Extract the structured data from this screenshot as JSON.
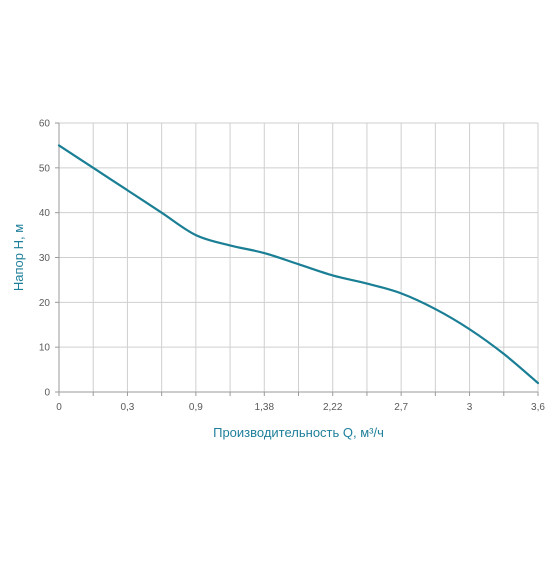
{
  "chart_data": {
    "type": "line",
    "title": "",
    "xlabel": "Производительность Q, м³/ч",
    "ylabel": "Напор H, м",
    "x_tick_labels": [
      "0",
      "0,3",
      "0,9",
      "1,38",
      "2,22",
      "2,7",
      "3",
      "3,6"
    ],
    "y_ticks": [
      0,
      10,
      20,
      30,
      40,
      50,
      60
    ],
    "y_tick_labels": [
      "0",
      "10",
      "20",
      "30",
      "40",
      "50",
      "60"
    ],
    "ylim": [
      0,
      60
    ],
    "vertical_grid_count": 14,
    "grid": true,
    "legend": "none",
    "series": [
      {
        "color": "#1a7f95",
        "points": [
          {
            "x_pos": 0.0,
            "y": 55
          },
          {
            "x_pos": 0.5,
            "y": 50
          },
          {
            "x_pos": 1.0,
            "y": 45
          },
          {
            "x_pos": 1.5,
            "y": 40
          },
          {
            "x_pos": 2.0,
            "y": 35
          },
          {
            "x_pos": 2.5,
            "y": 32.7
          },
          {
            "x_pos": 3.0,
            "y": 31
          },
          {
            "x_pos": 3.5,
            "y": 28.5
          },
          {
            "x_pos": 4.0,
            "y": 26
          },
          {
            "x_pos": 4.5,
            "y": 24.2
          },
          {
            "x_pos": 5.0,
            "y": 22
          },
          {
            "x_pos": 5.5,
            "y": 18.5
          },
          {
            "x_pos": 6.0,
            "y": 14
          },
          {
            "x_pos": 6.5,
            "y": 8.5
          },
          {
            "x_pos": 7.0,
            "y": 2
          }
        ]
      }
    ],
    "colors": {
      "curve": "#1a7f95",
      "axis_title": "#1f7f9a",
      "grid": "#cfcfcf",
      "axis": "#9a9a9a",
      "tick_text": "#5a5a5a"
    }
  }
}
